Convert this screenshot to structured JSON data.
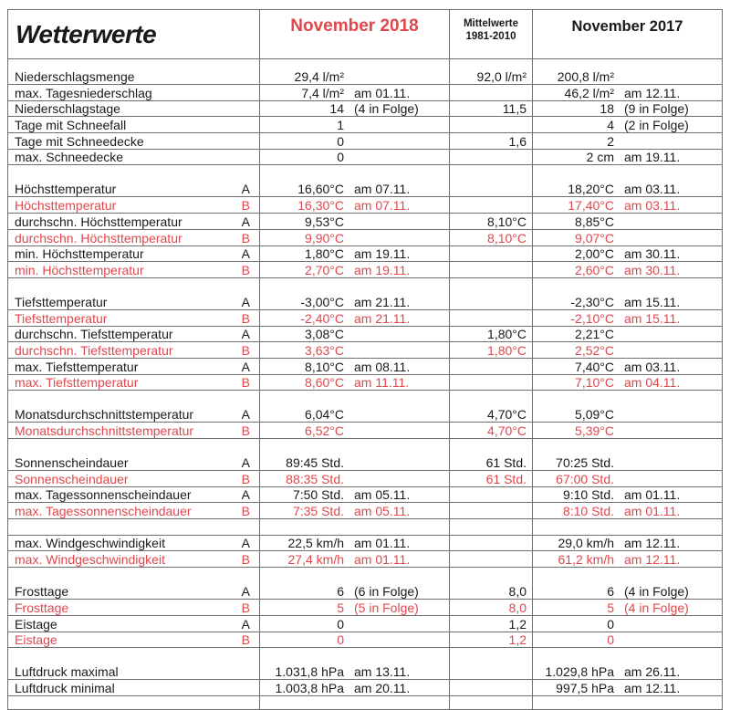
{
  "header": {
    "title": "Wetterwerte",
    "col_2018": "November 2018",
    "col_mittel_line1": "Mittelwerte",
    "col_mittel_line2": "1981-2010",
    "col_2017": "November 2017"
  },
  "colors": {
    "text": "#1a1a1a",
    "accent_red": "#e0474c",
    "grid": "#6f6f6f"
  },
  "groups": [
    {
      "rows": [
        {
          "label": "Niederschlagsmenge",
          "ab": "",
          "v2018": "29,4 l/m²",
          "n2018": "",
          "mittel": "92,0 l/m²",
          "v2017": "200,8 l/m²",
          "n2017": "",
          "red": false
        },
        {
          "label": "max. Tagesniederschlag",
          "ab": "",
          "v2018": "7,4 l/m²",
          "n2018": "am 01.11.",
          "mittel": "",
          "v2017": "46,2 l/m²",
          "n2017": "am 12.11.",
          "red": false
        },
        {
          "label": "Niederschlagstage",
          "ab": "",
          "v2018": "14",
          "n2018": "(4 in Folge)",
          "mittel": "11,5",
          "v2017": "18",
          "n2017": "(9 in Folge)",
          "red": false
        },
        {
          "label": "Tage mit Schneefall",
          "ab": "",
          "v2018": "1",
          "n2018": "",
          "mittel": "",
          "v2017": "4",
          "n2017": "(2 in Folge)",
          "red": false
        },
        {
          "label": "Tage mit Schneedecke",
          "ab": "",
          "v2018": "0",
          "n2018": "",
          "mittel": "1,6",
          "v2017": "2",
          "n2017": "",
          "red": false
        },
        {
          "label": "max. Schneedecke",
          "ab": "",
          "v2018": "0",
          "n2018": "",
          "mittel": "",
          "v2017": "2 cm",
          "n2017": "am 19.11.",
          "red": false
        }
      ]
    },
    {
      "rows": [
        {
          "label": "Höchsttemperatur",
          "ab": "A",
          "v2018": "16,60°C",
          "n2018": "am 07.11.",
          "mittel": "",
          "v2017": "18,20°C",
          "n2017": "am 03.11.",
          "red": false
        },
        {
          "label": "Höchsttemperatur",
          "ab": "B",
          "v2018": "16,30°C",
          "n2018": "am 07.11.",
          "mittel": "",
          "v2017": "17,40°C",
          "n2017": "am 03.11.",
          "red": true
        },
        {
          "label": "durchschn. Höchsttemperatur",
          "ab": "A",
          "v2018": "9,53°C",
          "n2018": "",
          "mittel": "8,10°C",
          "v2017": "8,85°C",
          "n2017": "",
          "red": false
        },
        {
          "label": "durchschn. Höchsttemperatur",
          "ab": "B",
          "v2018": "9,90°C",
          "n2018": "",
          "mittel": "8,10°C",
          "v2017": "9,07°C",
          "n2017": "",
          "red": true
        },
        {
          "label": "min. Höchsttemperatur",
          "ab": "A",
          "v2018": "1,80°C",
          "n2018": "am 19.11.",
          "mittel": "",
          "v2017": "2,00°C",
          "n2017": "am 30.11.",
          "red": false
        },
        {
          "label": "min. Höchsttemperatur",
          "ab": "B",
          "v2018": "2,70°C",
          "n2018": "am 19.11.",
          "mittel": "",
          "v2017": "2,60°C",
          "n2017": "am 30.11.",
          "red": true
        }
      ]
    },
    {
      "rows": [
        {
          "label": "Tiefsttemperatur",
          "ab": "A",
          "v2018": "-3,00°C",
          "n2018": "am 21.11.",
          "mittel": "",
          "v2017": "-2,30°C",
          "n2017": "am 15.11.",
          "red": false
        },
        {
          "label": "Tiefsttemperatur",
          "ab": "B",
          "v2018": "-2,40°C",
          "n2018": "am 21.11.",
          "mittel": "",
          "v2017": "-2,10°C",
          "n2017": "am 15.11.",
          "red": true
        },
        {
          "label": "durchschn. Tiefsttemperatur",
          "ab": "A",
          "v2018": "3,08°C",
          "n2018": "",
          "mittel": "1,80°C",
          "v2017": "2,21°C",
          "n2017": "",
          "red": false
        },
        {
          "label": "durchschn. Tiefsttemperatur",
          "ab": "B",
          "v2018": "3,63°C",
          "n2018": "",
          "mittel": "1,80°C",
          "v2017": "2,52°C",
          "n2017": "",
          "red": true
        },
        {
          "label": "max. Tiefsttemperatur",
          "ab": "A",
          "v2018": "8,10°C",
          "n2018": "am 08.11.",
          "mittel": "",
          "v2017": "7,40°C",
          "n2017": "am 03.11.",
          "red": false
        },
        {
          "label": "max. Tiefsttemperatur",
          "ab": "B",
          "v2018": "8,60°C",
          "n2018": "am 11.11.",
          "mittel": "",
          "v2017": "7,10°C",
          "n2017": "am 04.11.",
          "red": true
        }
      ]
    },
    {
      "rows": [
        {
          "label": "Monatsdurchschnittstemperatur",
          "ab": "A",
          "v2018": "6,04°C",
          "n2018": "",
          "mittel": "4,70°C",
          "v2017": "5,09°C",
          "n2017": "",
          "red": false
        },
        {
          "label": "Monatsdurchschnittstemperatur",
          "ab": "B",
          "v2018": "6,52°C",
          "n2018": "",
          "mittel": "4,70°C",
          "v2017": "5,39°C",
          "n2017": "",
          "red": true
        }
      ]
    },
    {
      "rows": [
        {
          "label": "Sonnenscheindauer",
          "ab": "A",
          "v2018": "89:45 Std.",
          "n2018": "",
          "mittel": "61 Std.",
          "v2017": "70:25 Std.",
          "n2017": "",
          "red": false
        },
        {
          "label": "Sonnenscheindauer",
          "ab": "B",
          "v2018": "88:35 Std.",
          "n2018": "",
          "mittel": "61 Std.",
          "v2017": "67:00 Std.",
          "n2017": "",
          "red": true
        },
        {
          "label": "max. Tagessonnenscheindauer",
          "ab": "A",
          "v2018": "7:50 Std.",
          "n2018": "am 05.11.",
          "mittel": "",
          "v2017": "9:10 Std.",
          "n2017": "am 01.11.",
          "red": false
        },
        {
          "label": "max. Tagessonnenscheindauer",
          "ab": "B",
          "v2018": "7:35 Std.",
          "n2018": "am 05.11.",
          "mittel": "",
          "v2017": "8:10 Std.",
          "n2017": "am 01.11.",
          "red": true
        }
      ]
    },
    {
      "rows": [
        {
          "label": "max. Windgeschwindigkeit",
          "ab": "A",
          "v2018": "22,5 km/h",
          "n2018": "am 01.11.",
          "mittel": "",
          "v2017": "29,0 km/h",
          "n2017": "am 12.11.",
          "red": false
        },
        {
          "label": "max. Windgeschwindigkeit",
          "ab": "B",
          "v2018": "27,4 km/h",
          "n2018": "am 01.11.",
          "mittel": "",
          "v2017": "61,2 km/h",
          "n2017": "am 12.11.",
          "red": true
        }
      ]
    },
    {
      "rows": [
        {
          "label": "Frosttage",
          "ab": "A",
          "v2018": "6",
          "n2018": "(6 in Folge)",
          "mittel": "8,0",
          "v2017": "6",
          "n2017": "(4 in Folge)",
          "red": false
        },
        {
          "label": "Frosttage",
          "ab": "B",
          "v2018": "5",
          "n2018": "(5 in Folge)",
          "mittel": "8,0",
          "v2017": "5",
          "n2017": "(4 in Folge)",
          "red": true
        },
        {
          "label": "Eistage",
          "ab": "A",
          "v2018": "0",
          "n2018": "",
          "mittel": "1,2",
          "v2017": "0",
          "n2017": "",
          "red": false
        },
        {
          "label": "Eistage",
          "ab": "B",
          "v2018": "0",
          "n2018": "",
          "mittel": "1,2",
          "v2017": "0",
          "n2017": "",
          "red": true
        }
      ]
    },
    {
      "rows": [
        {
          "label": "Luftdruck maximal",
          "ab": "",
          "v2018": "1.031,8 hPa",
          "n2018": "am 13.11.",
          "mittel": "",
          "v2017": "1.029,8 hPa",
          "n2017": "am 26.11.",
          "red": false
        },
        {
          "label": "Luftdruck minimal",
          "ab": "",
          "v2018": "1.003,8 hPa",
          "n2018": "am 20.11.",
          "mittel": "",
          "v2017": "997,5 hPa",
          "n2017": "am 12.11.",
          "red": false
        }
      ]
    }
  ]
}
